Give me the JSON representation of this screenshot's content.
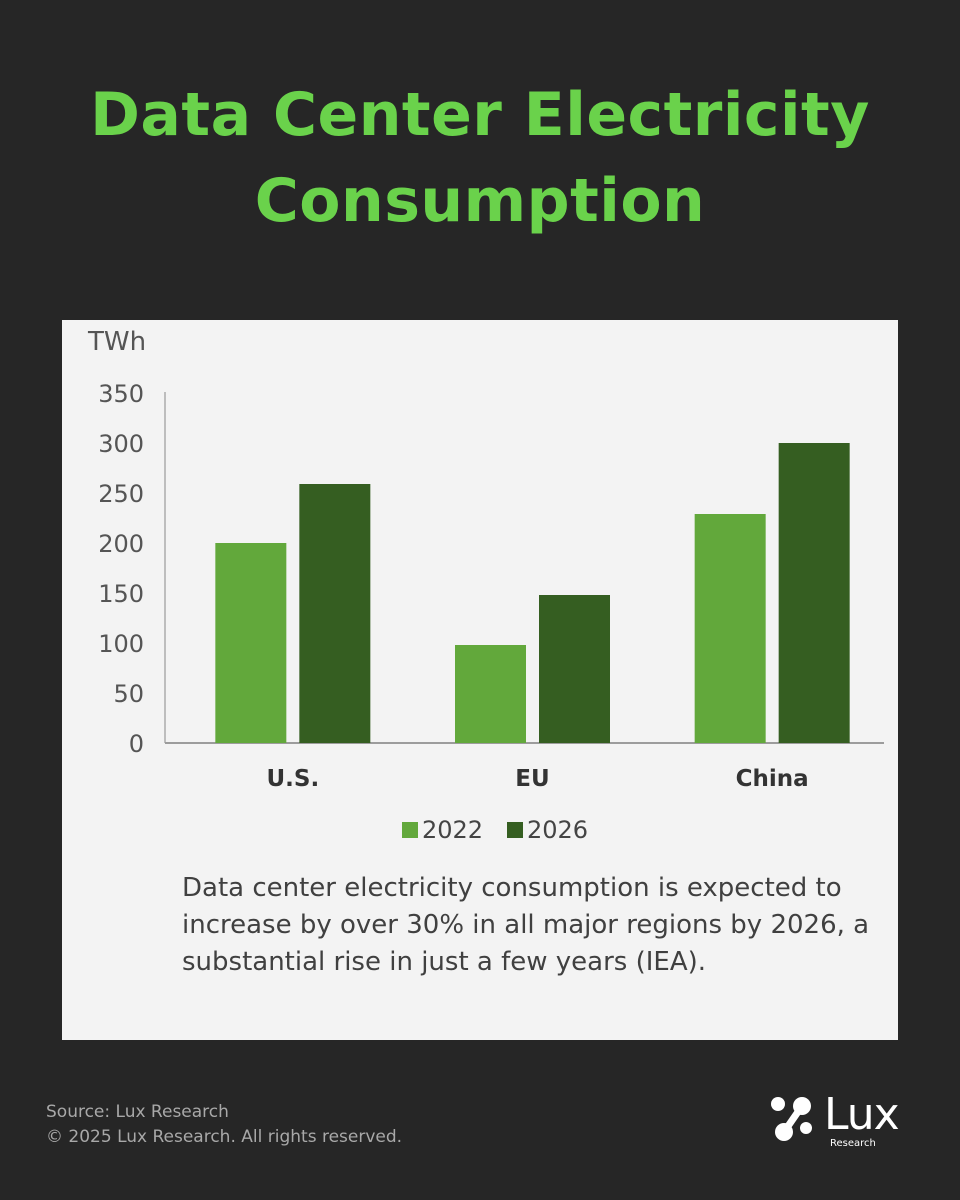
{
  "header": {
    "title_line1": "Data Center Electricity",
    "title_line2": "Consumption"
  },
  "chart_data": {
    "type": "bar",
    "ylabel": "TWh",
    "categories": [
      "U.S.",
      "EU",
      "China"
    ],
    "series": [
      {
        "name": "2022",
        "values": [
          200,
          98,
          229
        ],
        "color": "#62a83b"
      },
      {
        "name": "2026",
        "values": [
          259,
          148,
          300
        ],
        "color": "#355e21"
      }
    ],
    "ylim": [
      0,
      350
    ],
    "yticks": [
      0,
      50,
      100,
      150,
      200,
      250,
      300,
      350
    ],
    "grid": false,
    "legend": "bottom-center"
  },
  "caption": "Data center electricity consumption is expected to increase by over 30% in all major regions by 2026, a substantial rise in just a few years (IEA).",
  "footer": {
    "source": "Source: Lux Research",
    "copyright": "© 2025 Lux Research. All rights reserved."
  },
  "logo": {
    "word": "Lux",
    "sub": "Research"
  },
  "colors": {
    "background": "#262626",
    "title": "#6ad24b",
    "panel": "#f3f3f3"
  }
}
